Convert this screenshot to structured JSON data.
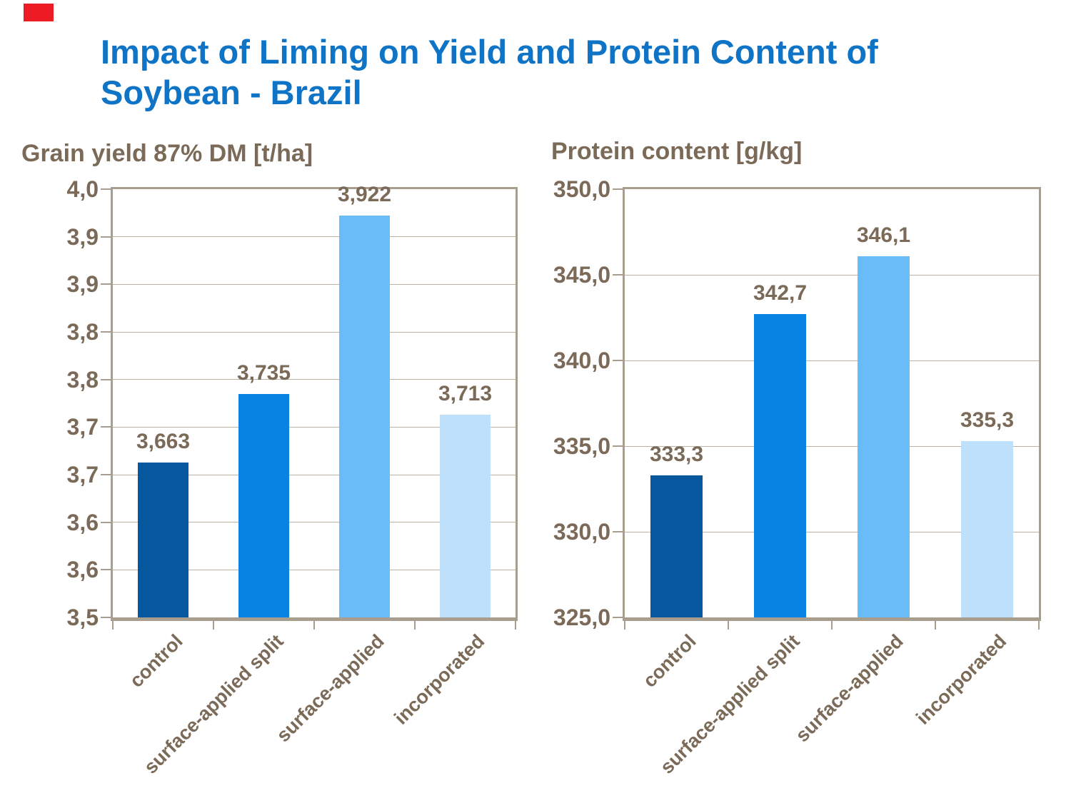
{
  "slide": {
    "title_lines": [
      "Impact of Liming on Yield and Protein Content of",
      "Soybean - Brazil"
    ],
    "title_color": "#0F74C6",
    "marker_color": "#ED1C24"
  },
  "style": {
    "text_color": "#7B6A58",
    "frame_color": "#A89E90",
    "grid_color": "#BDB3A3",
    "background": "#FFFFFF"
  },
  "chart_data": [
    {
      "type": "bar",
      "title": "Grain yield 87% DM [t/ha]",
      "categories": [
        "control",
        "surface-applied split",
        "surface-applied",
        "incorporated"
      ],
      "values": [
        3.663,
        3.735,
        3.922,
        3.713
      ],
      "data_labels": [
        "3,663",
        "3,735",
        "3,922",
        "3,713"
      ],
      "bar_colors": [
        "#06579D",
        "#0883E3",
        "#6ABCF9",
        "#BFE0FB"
      ],
      "ylim": [
        3.5,
        3.95
      ],
      "ytick_labels": [
        "4,0",
        "3,9",
        "3,9",
        "3,8",
        "3,8",
        "3,7",
        "3,7",
        "3,6",
        "3,6",
        "3,5"
      ],
      "xlabel": "",
      "ylabel": "",
      "grid": true,
      "legend": false
    },
    {
      "type": "bar",
      "title": "Protein content [g/kg]",
      "categories": [
        "control",
        "surface-applied split",
        "surface-applied",
        "incorporated"
      ],
      "values": [
        333.3,
        342.7,
        346.1,
        335.3
      ],
      "data_labels": [
        "333,3",
        "342,7",
        "346,1",
        "335,3"
      ],
      "bar_colors": [
        "#06579D",
        "#0883E3",
        "#6ABCF9",
        "#BFE0FB"
      ],
      "ylim": [
        325,
        350
      ],
      "ytick_labels": [
        "350,0",
        "345,0",
        "340,0",
        "335,0",
        "330,0",
        "325,0"
      ],
      "xlabel": "",
      "ylabel": "",
      "grid": true,
      "legend": false
    }
  ]
}
